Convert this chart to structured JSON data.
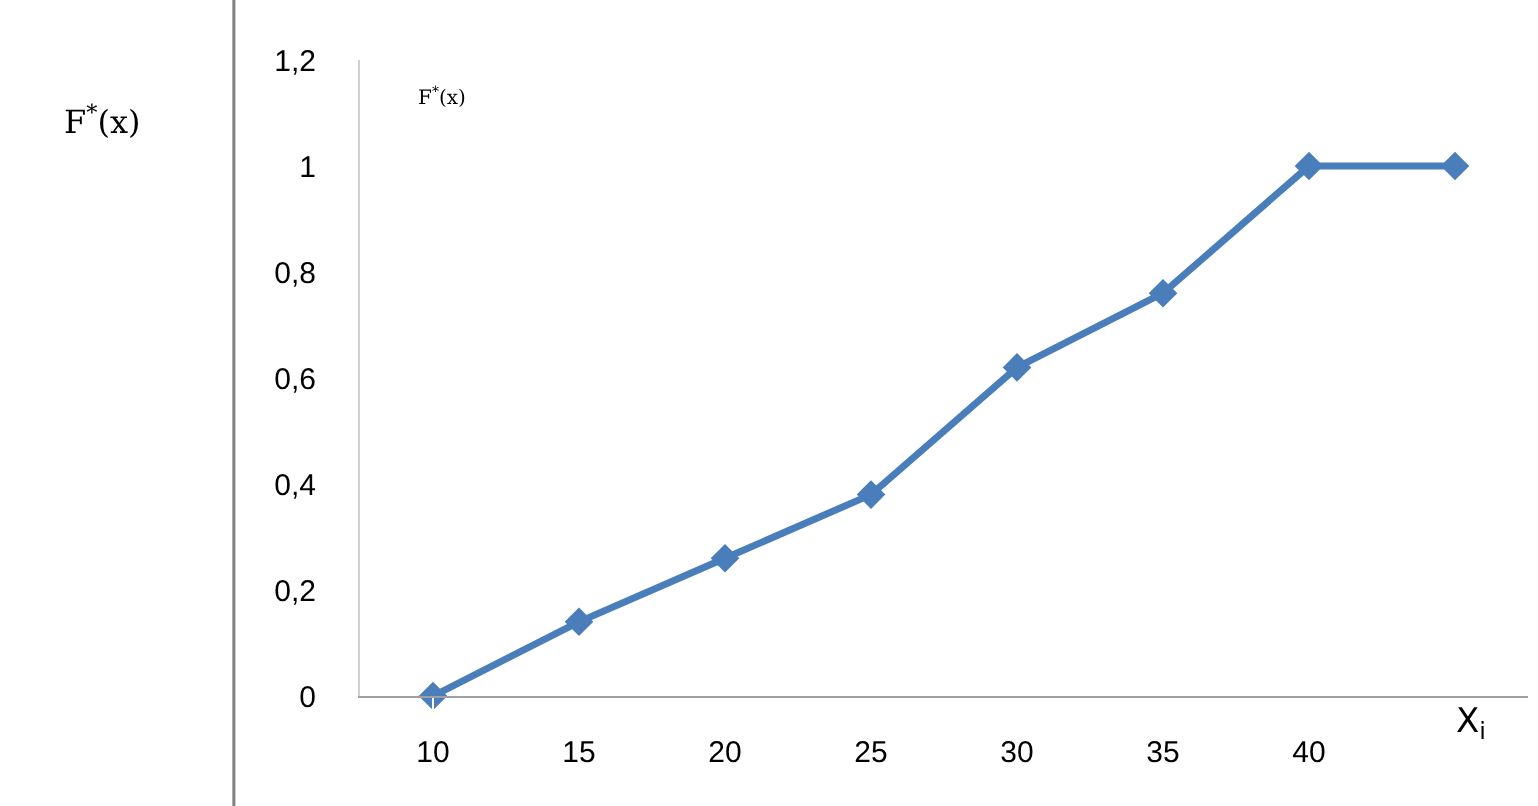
{
  "chart_data": {
    "type": "line",
    "ylabel": "F$^{*}$(x)",
    "xlabel": "X$_{i}$",
    "annotations": [
      "F$^{*}$(x)"
    ],
    "categories": [
      "10",
      "15",
      "20",
      "25",
      "30",
      "35",
      "40",
      null
    ],
    "series": [
      {
        "color": "#4a7ebb",
        "values": [
          0,
          0.14,
          0.26,
          0.38,
          0.62,
          0.76,
          1,
          1
        ]
      }
    ],
    "ylim": [
      0,
      1.2
    ],
    "yticks": [
      0,
      {
        "value": 0.2,
        "label": "0,2"
      },
      {
        "value": 0.4,
        "label": "0,4"
      },
      {
        "value": 0.6,
        "label": "0,6"
      },
      {
        "value": 0.8,
        "label": "0,8"
      },
      1,
      {
        "value": 1.2,
        "label": "1,2"
      }
    ],
    "grid": false,
    "marker": "diamond",
    "line_style": "solid"
  }
}
